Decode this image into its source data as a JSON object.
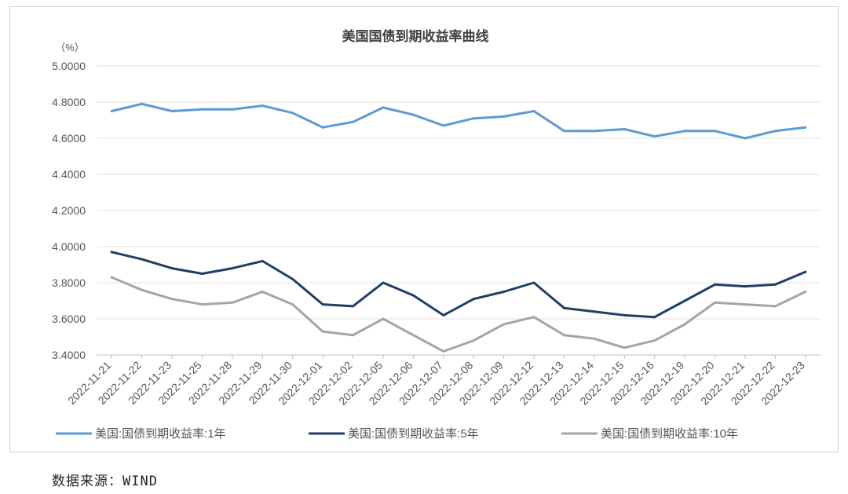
{
  "chart_data": {
    "type": "line",
    "title": "美国国债到期收益率曲线",
    "y_unit": "（%）",
    "ylim": [
      3.4,
      5.0
    ],
    "yticks": [
      "5.0000",
      "4.8000",
      "4.6000",
      "4.4000",
      "4.2000",
      "4.0000",
      "3.8000",
      "3.6000",
      "3.4000"
    ],
    "x": [
      "2022-11-21",
      "2022-11-22",
      "2022-11-23",
      "2022-11-25",
      "2022-11-28",
      "2022-11-29",
      "2022-11-30",
      "2022-12-01",
      "2022-12-02",
      "2022-12-05",
      "2022-12-06",
      "2022-12-07",
      "2022-12-08",
      "2022-12-09",
      "2022-12-12",
      "2022-12-13",
      "2022-12-14",
      "2022-12-15",
      "2022-12-16",
      "2022-12-19",
      "2022-12-20",
      "2022-12-21",
      "2022-12-22",
      "2022-12-23"
    ],
    "series": [
      {
        "name": "美国:国债到期收益率:1年",
        "color": "#5b9bd5",
        "values": [
          4.75,
          4.79,
          4.75,
          4.76,
          4.76,
          4.78,
          4.74,
          4.66,
          4.69,
          4.77,
          4.73,
          4.67,
          4.71,
          4.72,
          4.75,
          4.64,
          4.64,
          4.65,
          4.61,
          4.64,
          4.64,
          4.6,
          4.64,
          4.66
        ]
      },
      {
        "name": "美国:国债到期收益率:5年",
        "color": "#1f3f66",
        "values": [
          3.97,
          3.93,
          3.88,
          3.85,
          3.88,
          3.92,
          3.82,
          3.68,
          3.67,
          3.8,
          3.73,
          3.62,
          3.71,
          3.75,
          3.8,
          3.66,
          3.64,
          3.62,
          3.61,
          3.7,
          3.79,
          3.78,
          3.79,
          3.86
        ]
      },
      {
        "name": "美国:国债到期收益率:10年",
        "color": "#a5a5a5",
        "values": [
          3.83,
          3.76,
          3.71,
          3.68,
          3.69,
          3.75,
          3.68,
          3.53,
          3.51,
          3.6,
          3.51,
          3.42,
          3.48,
          3.57,
          3.61,
          3.51,
          3.49,
          3.44,
          3.48,
          3.57,
          3.69,
          3.68,
          3.67,
          3.75
        ]
      }
    ],
    "grid": true,
    "legend": "bottom"
  },
  "source_note": "数据来源：WIND"
}
